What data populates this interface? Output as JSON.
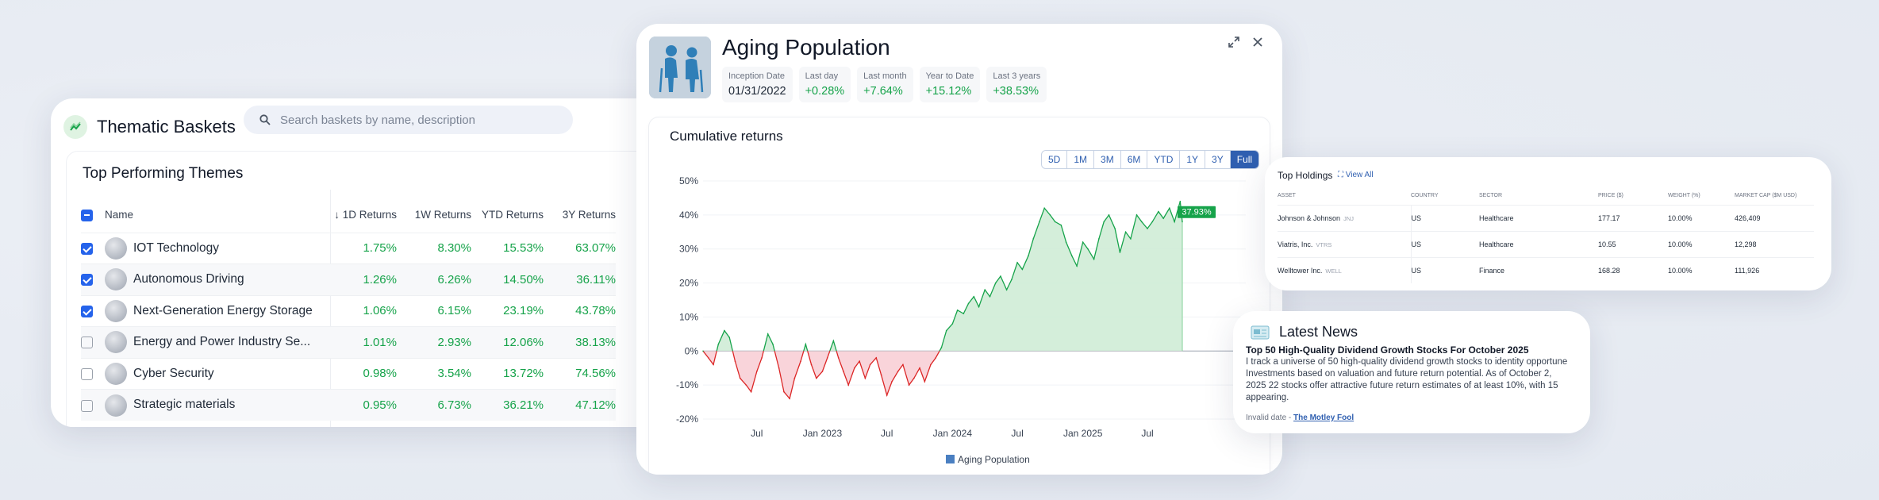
{
  "baskets": {
    "title": "Thematic Baskets",
    "search_placeholder": "Search baskets by name, description",
    "section_title": "Top Performing Themes",
    "columns": {
      "name": "Name",
      "d1": "1D Returns",
      "w1": "1W Returns",
      "ytd": "YTD Returns",
      "y3": "3Y Returns"
    },
    "rows": [
      {
        "name": "IOT Technology",
        "d1": "1.75%",
        "w1": "8.30%",
        "ytd": "15.53%",
        "y3": "63.07%",
        "checked": true
      },
      {
        "name": "Autonomous Driving",
        "d1": "1.26%",
        "w1": "6.26%",
        "ytd": "14.50%",
        "y3": "36.11%",
        "checked": true
      },
      {
        "name": "Next-Generation Energy Storage",
        "d1": "1.06%",
        "w1": "6.15%",
        "ytd": "23.19%",
        "y3": "43.78%",
        "checked": true
      },
      {
        "name": "Energy and Power Industry Se...",
        "d1": "1.01%",
        "w1": "2.93%",
        "ytd": "12.06%",
        "y3": "38.13%",
        "checked": false
      },
      {
        "name": "Cyber Security",
        "d1": "0.98%",
        "w1": "3.54%",
        "ytd": "13.72%",
        "y3": "74.56%",
        "checked": false
      },
      {
        "name": "Strategic materials",
        "d1": "0.95%",
        "w1": "6.73%",
        "ytd": "36.21%",
        "y3": "47.12%",
        "checked": false
      }
    ]
  },
  "aging": {
    "title": "Aging Population",
    "stats": [
      {
        "label": "Inception Date",
        "value": "01/31/2022",
        "positive": false
      },
      {
        "label": "Last day",
        "value": "+0.28%",
        "positive": true
      },
      {
        "label": "Last month",
        "value": "+7.64%",
        "positive": true
      },
      {
        "label": "Year to Date",
        "value": "+15.12%",
        "positive": true
      },
      {
        "label": "Last 3 years",
        "value": "+38.53%",
        "positive": true
      }
    ],
    "chart_title": "Cumulative returns",
    "periods": [
      "5D",
      "1M",
      "3M",
      "6M",
      "YTD",
      "1Y",
      "3Y",
      "Full"
    ],
    "active_period": "Full"
  },
  "chart_data": {
    "type": "area",
    "title": "Cumulative returns",
    "ylabel": "",
    "ylim": [
      -20,
      50
    ],
    "yticks": [
      "50%",
      "40%",
      "30%",
      "20%",
      "10%",
      "0%",
      "-10%",
      "-20%"
    ],
    "xticks": [
      "Jul",
      "Jan 2023",
      "Jul",
      "Jan 2024",
      "Jul",
      "Jan 2025",
      "Jul"
    ],
    "series": [
      {
        "name": "Aging Population",
        "color": "#4a7fc1"
      }
    ],
    "end_label": "37.93%",
    "x": [
      "2022-01-31",
      "2022-02-15",
      "2022-03-01",
      "2022-03-15",
      "2022-04-01",
      "2022-04-15",
      "2022-05-01",
      "2022-05-15",
      "2022-06-01",
      "2022-06-15",
      "2022-07-01",
      "2022-07-15",
      "2022-08-01",
      "2022-08-15",
      "2022-09-01",
      "2022-09-15",
      "2022-10-01",
      "2022-10-15",
      "2022-11-01",
      "2022-11-15",
      "2022-12-01",
      "2022-12-15",
      "2023-01-01",
      "2023-01-15",
      "2023-02-01",
      "2023-02-15",
      "2023-03-01",
      "2023-03-15",
      "2023-04-01",
      "2023-04-15",
      "2023-05-01",
      "2023-05-15",
      "2023-06-01",
      "2023-06-15",
      "2023-07-01",
      "2023-07-15",
      "2023-08-01",
      "2023-08-15",
      "2023-09-01",
      "2023-09-15",
      "2023-10-01",
      "2023-10-15",
      "2023-11-01",
      "2023-11-15",
      "2023-12-01",
      "2023-12-15",
      "2024-01-01",
      "2024-01-15",
      "2024-02-01",
      "2024-02-15",
      "2024-03-01",
      "2024-03-15",
      "2024-04-01",
      "2024-04-15",
      "2024-05-01",
      "2024-05-15",
      "2024-06-01",
      "2024-06-15",
      "2024-07-01",
      "2024-07-15",
      "2024-08-01",
      "2024-08-15",
      "2024-09-01",
      "2024-09-15",
      "2024-10-01",
      "2024-10-15",
      "2024-11-01",
      "2024-11-15",
      "2024-12-01",
      "2024-12-15",
      "2025-01-01",
      "2025-01-15",
      "2025-02-01",
      "2025-02-15",
      "2025-03-01",
      "2025-03-15",
      "2025-04-01",
      "2025-04-15",
      "2025-05-01",
      "2025-05-15",
      "2025-06-01",
      "2025-06-15",
      "2025-07-01",
      "2025-07-15",
      "2025-08-01",
      "2025-08-15",
      "2025-09-01",
      "2025-09-15",
      "2025-10-01",
      "2025-10-07"
    ],
    "y": [
      0,
      -2,
      -4,
      2,
      6,
      4,
      -3,
      -8,
      -10,
      -12,
      -6,
      -2,
      5,
      2,
      -5,
      -12,
      -14,
      -8,
      -3,
      2,
      -4,
      -8,
      -6,
      -2,
      3,
      -2,
      -6,
      -10,
      -5,
      -3,
      -8,
      -4,
      -2,
      -7,
      -13,
      -9,
      -6,
      -4,
      -10,
      -8,
      -5,
      -9,
      -4,
      -2,
      1,
      6,
      8,
      12,
      11,
      14,
      16,
      13,
      18,
      16,
      20,
      22,
      18,
      21,
      26,
      24,
      28,
      33,
      38,
      42,
      40,
      38,
      37,
      32,
      28,
      25,
      32,
      30,
      27,
      33,
      38,
      40,
      36,
      29,
      35,
      33,
      40,
      38,
      36,
      38,
      41,
      39,
      42,
      38,
      44,
      37.93
    ]
  },
  "holdings": {
    "title": "Top Holdings",
    "view_all": "View All",
    "columns": [
      "ASSET",
      "COUNTRY",
      "SECTOR",
      "PRICE ($)",
      "WEIGHT (%)",
      "MARKET CAP ($M USD)"
    ],
    "rows": [
      {
        "asset": "Johnson & Johnson",
        "ticker": "JNJ",
        "country": "US",
        "sector": "Healthcare",
        "price": "177.17",
        "weight": "10.00%",
        "mcap": "426,409"
      },
      {
        "asset": "Viatris, Inc.",
        "ticker": "VTRS",
        "country": "US",
        "sector": "Healthcare",
        "price": "10.55",
        "weight": "10.00%",
        "mcap": "12,298"
      },
      {
        "asset": "Welltower Inc.",
        "ticker": "WELL",
        "country": "US",
        "sector": "Finance",
        "price": "168.28",
        "weight": "10.00%",
        "mcap": "111,926"
      }
    ]
  },
  "news": {
    "title": "Latest News",
    "headline": "Top 50 High-Quality Dividend Growth Stocks For October 2025",
    "body": "I track a universe of 50 high-quality dividend growth stocks to identity opportune Investments based on valuation and future return potential. As of October 2, 2025 22 stocks offer attractive future return estimates of at least 10%, with 15 appearing.",
    "date": "Invalid date",
    "separator": " - ",
    "source": "The Motley Fool"
  }
}
